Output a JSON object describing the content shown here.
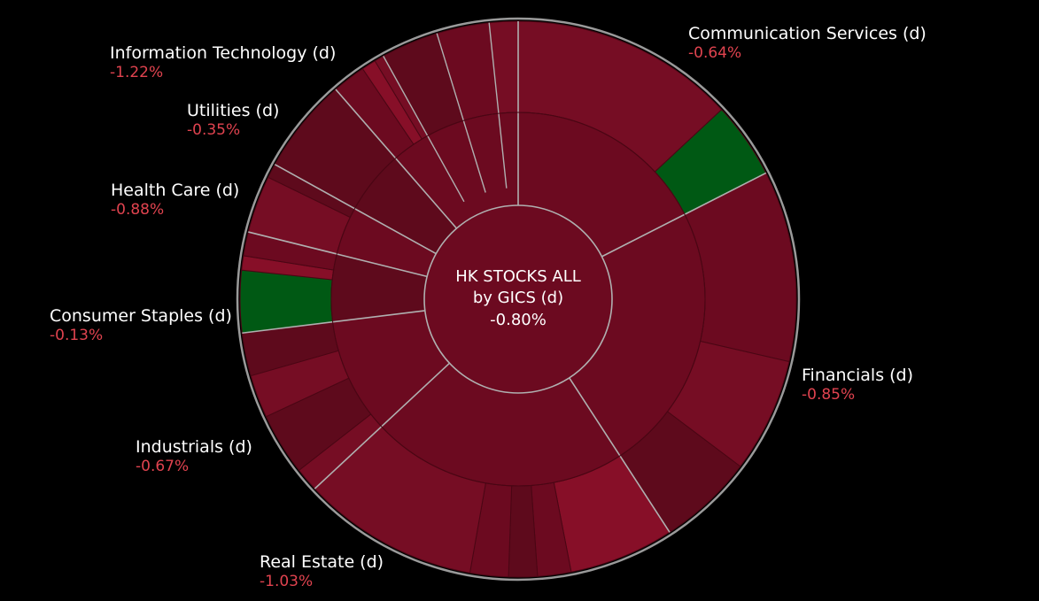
{
  "chart_data": {
    "type": "sunburst",
    "center": {
      "line1": "HK STOCKS ALL",
      "line2": "by GICS (d)",
      "value": "-0.80%"
    },
    "colors": {
      "background": "#000000",
      "negative_value_text": "#e0434f",
      "ring_border": "#b0b0b0",
      "dark_red": "#5e0a1c",
      "mid_red": "#6c0a20",
      "red": "#760d24",
      "bright_red": "#870f28",
      "green": "#005914"
    },
    "sectors": [
      {
        "name": "Communication Services (d)",
        "change": -0.64,
        "label": "-0.64%",
        "label_side": "right",
        "children": [
          {
            "color": "#760d24"
          },
          {
            "color": "#005914"
          }
        ]
      },
      {
        "name": "Financials (d)",
        "change": -0.85,
        "label": "-0.85%",
        "label_side": "right",
        "children": [
          {
            "color": "#6c0a20"
          },
          {
            "color": "#760d24"
          },
          {
            "color": "#5e0a1c"
          }
        ]
      },
      {
        "name": "Real Estate (d)",
        "change": -1.03,
        "label": "-1.03%",
        "label_side": "bottom",
        "children": [
          {
            "color": "#870f28"
          },
          {
            "color": "#6c0a20"
          },
          {
            "color": "#5e0a1c"
          },
          {
            "color": "#6c0a20"
          },
          {
            "color": "#760d24"
          }
        ]
      },
      {
        "name": "Industrials (d)",
        "change": -0.67,
        "label": "-0.67%",
        "label_side": "left",
        "children": [
          {
            "color": "#760d24"
          },
          {
            "color": "#5e0a1c"
          },
          {
            "color": "#760d24"
          },
          {
            "color": "#5e0a1c"
          }
        ]
      },
      {
        "name": "Consumer Staples (d)",
        "change": -0.13,
        "label": "-0.13%",
        "label_side": "left",
        "children": [
          {
            "color": "#005914"
          },
          {
            "color": "#870f28"
          },
          {
            "color": "#6c0a20"
          }
        ]
      },
      {
        "name": "Health Care (d)",
        "change": -0.88,
        "label": "-0.88%",
        "label_side": "left",
        "children": [
          {
            "color": "#760d24"
          },
          {
            "color": "#5e0a1c"
          }
        ]
      },
      {
        "name": "Utilities (d)",
        "change": -0.35,
        "label": "-0.35%",
        "label_side": "left",
        "children": [
          {
            "color": "#5e0a1c"
          }
        ]
      },
      {
        "name": "Information Technology (d)",
        "change": -1.22,
        "label": "-1.22%",
        "label_side": "left",
        "children": [
          {
            "color": "#6c0a20"
          },
          {
            "color": "#870f28"
          },
          {
            "color": "#760d24"
          },
          {
            "color": "#5e0a1c"
          },
          {
            "color": "#6c0a20"
          },
          {
            "color": "#760d24"
          }
        ]
      }
    ]
  }
}
